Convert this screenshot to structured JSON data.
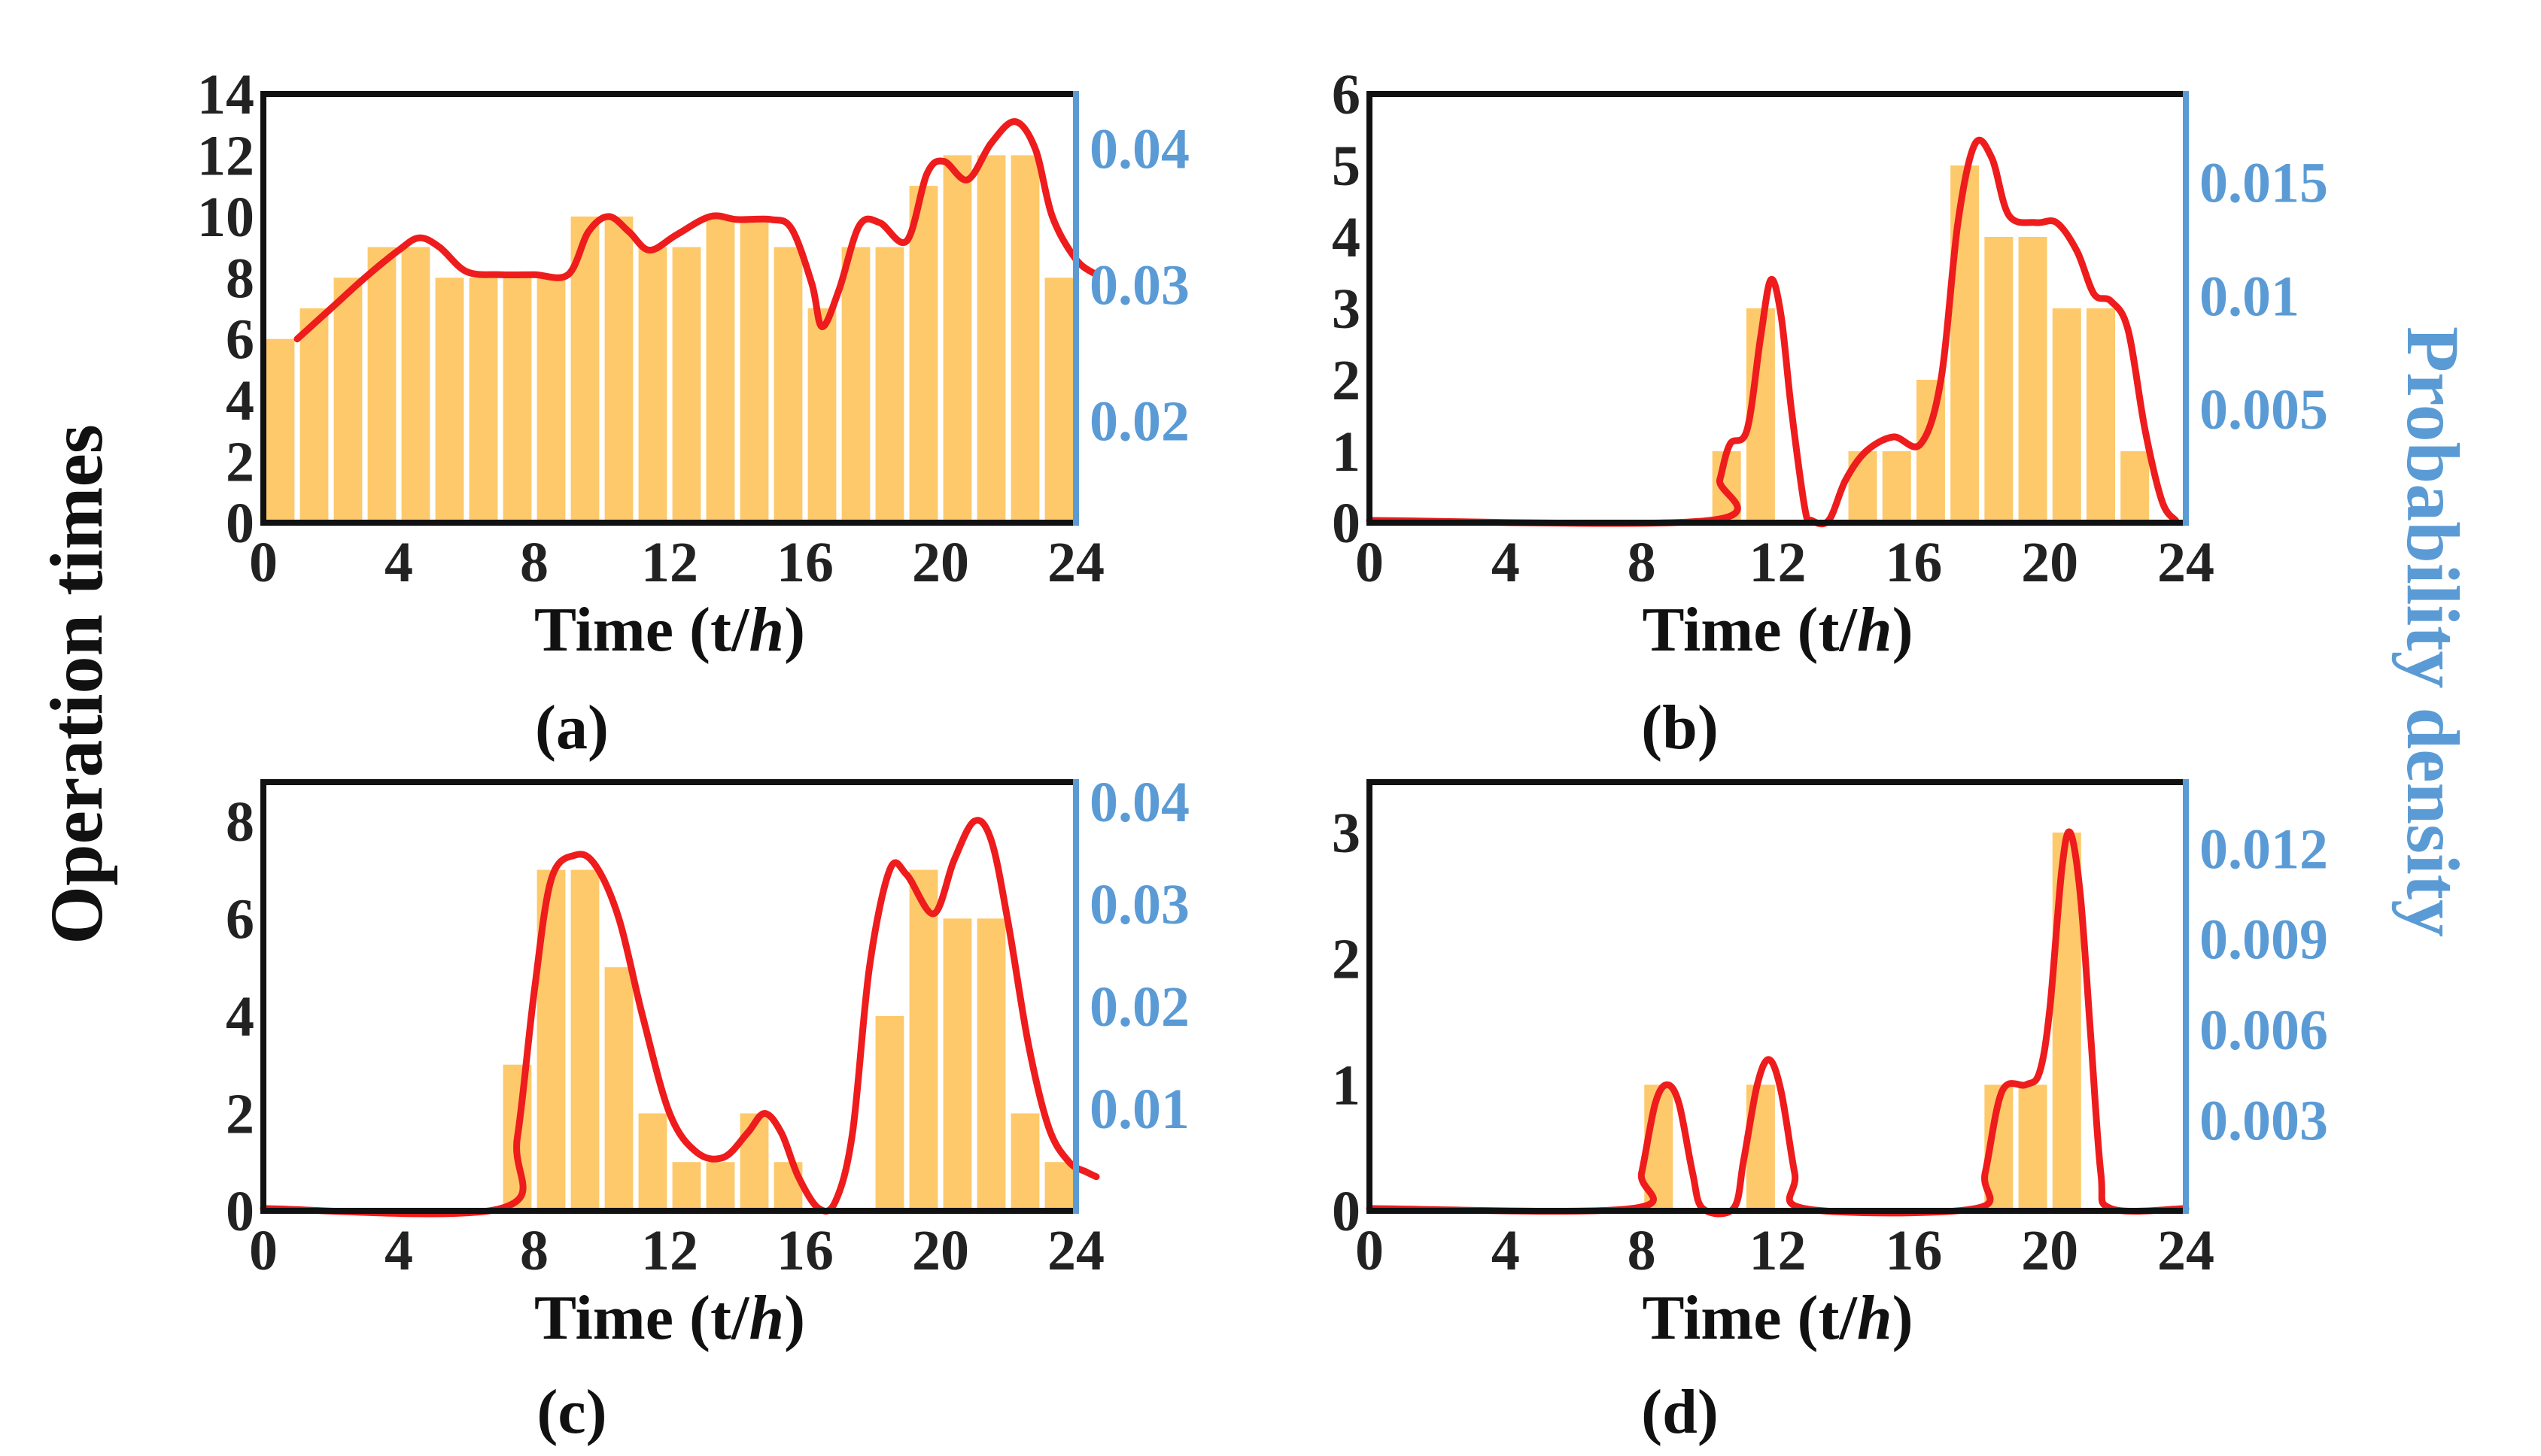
{
  "figure": {
    "ylabel_left": "Operation times",
    "ylabel_right": "Probability density",
    "colors": {
      "bar": "#fdc96a",
      "curve": "#ee1c1c",
      "right_axis": "#5b9bd5",
      "frame": "#111111"
    }
  },
  "chart_data": [
    {
      "type": "bar",
      "panel": "a",
      "caption": "(a)",
      "xlabel_main": "Time (t/",
      "xlabel_italic": "h",
      "xlabel_end": ")",
      "xlim": [
        0,
        24
      ],
      "xticks": [
        0,
        4,
        8,
        12,
        16,
        20,
        24
      ],
      "ylim_left": [
        0,
        14
      ],
      "yticks_left": [
        0,
        2,
        4,
        6,
        8,
        10,
        12,
        14
      ],
      "ylim_right": [
        0.0125,
        0.044
      ],
      "yticks_right": [
        "0.02",
        "0.03",
        "0.04"
      ],
      "yticks_right_values": [
        0.02,
        0.03,
        0.04
      ],
      "categories": [
        0.5,
        1.5,
        2.5,
        3.5,
        4.5,
        5.5,
        6.5,
        7.5,
        8.5,
        9.5,
        10.5,
        11.5,
        12.5,
        13.5,
        14.5,
        15.5,
        16.5,
        17.5,
        18.5,
        19.5,
        20.5,
        21.5,
        22.5,
        23.5
      ],
      "values": [
        6,
        7,
        8,
        9,
        9,
        8,
        8,
        8,
        8,
        10,
        10,
        9,
        9,
        10,
        10,
        9,
        7,
        9,
        9,
        11,
        12,
        12,
        12,
        8
      ],
      "curve": [
        [
          1,
          6.0
        ],
        [
          2,
          7.0
        ],
        [
          3,
          8.0
        ],
        [
          4,
          8.9
        ],
        [
          4.6,
          9.3
        ],
        [
          5.2,
          9.0
        ],
        [
          6,
          8.2
        ],
        [
          7,
          8.1
        ],
        [
          8,
          8.1
        ],
        [
          9,
          8.1
        ],
        [
          9.6,
          9.5
        ],
        [
          10.2,
          10.0
        ],
        [
          10.8,
          9.5
        ],
        [
          11.4,
          8.9
        ],
        [
          12.2,
          9.4
        ],
        [
          13.2,
          10.0
        ],
        [
          14,
          9.9
        ],
        [
          15,
          9.9
        ],
        [
          15.6,
          9.6
        ],
        [
          16.2,
          7.8
        ],
        [
          16.5,
          6.4
        ],
        [
          17,
          7.6
        ],
        [
          17.6,
          9.7
        ],
        [
          18.2,
          9.8
        ],
        [
          19,
          9.2
        ],
        [
          19.6,
          11.4
        ],
        [
          20.1,
          11.8
        ],
        [
          20.8,
          11.2
        ],
        [
          21.5,
          12.4
        ],
        [
          22.2,
          13.1
        ],
        [
          22.8,
          12.2
        ],
        [
          23.3,
          10.0
        ],
        [
          24,
          8.6
        ],
        [
          24.6,
          8.1
        ]
      ]
    },
    {
      "type": "bar",
      "panel": "b",
      "caption": "(b)",
      "xlabel_main": "Time (t/",
      "xlabel_italic": "h",
      "xlabel_end": ")",
      "xlim": [
        0,
        24
      ],
      "xticks": [
        0,
        4,
        8,
        12,
        16,
        20,
        24
      ],
      "ylim_left": [
        0,
        6
      ],
      "yticks_left": [
        0,
        1,
        2,
        3,
        4,
        5,
        6
      ],
      "ylim_right": [
        0,
        0.0189
      ],
      "yticks_right": [
        "0.005",
        "0.01",
        "0.015"
      ],
      "yticks_right_values": [
        0.005,
        0.01,
        0.015
      ],
      "categories": [
        10.5,
        11.5,
        14.5,
        15.5,
        16.5,
        17.5,
        18.5,
        19.5,
        20.5,
        21.5,
        22.5
      ],
      "values": [
        1,
        3,
        1,
        1,
        2,
        5,
        4,
        4,
        3,
        3,
        1
      ],
      "curve": [
        [
          0,
          0
        ],
        [
          10,
          0
        ],
        [
          10.3,
          0.6
        ],
        [
          10.6,
          1.1
        ],
        [
          11.1,
          1.3
        ],
        [
          11.5,
          2.6
        ],
        [
          11.8,
          3.4
        ],
        [
          12.1,
          2.9
        ],
        [
          12.4,
          1.6
        ],
        [
          12.8,
          0.2
        ],
        [
          13.0,
          0
        ],
        [
          13.5,
          0
        ],
        [
          14,
          0.6
        ],
        [
          14.6,
          1.0
        ],
        [
          15.4,
          1.2
        ],
        [
          16.2,
          1.1
        ],
        [
          16.8,
          2.0
        ],
        [
          17.3,
          4.2
        ],
        [
          17.8,
          5.3
        ],
        [
          18.3,
          5.1
        ],
        [
          18.8,
          4.3
        ],
        [
          19.6,
          4.2
        ],
        [
          20.2,
          4.2
        ],
        [
          20.8,
          3.8
        ],
        [
          21.3,
          3.2
        ],
        [
          21.8,
          3.1
        ],
        [
          22.3,
          2.7
        ],
        [
          22.8,
          1.3
        ],
        [
          23.3,
          0.3
        ],
        [
          23.7,
          0
        ]
      ]
    },
    {
      "type": "bar",
      "panel": "c",
      "caption": "(c)",
      "xlabel_main": "Time (t/",
      "xlabel_italic": "h",
      "xlabel_end": ")",
      "xlim": [
        0,
        24
      ],
      "xticks": [
        0,
        4,
        8,
        12,
        16,
        20,
        24
      ],
      "ylim_left": [
        0,
        8.8
      ],
      "yticks_left": [
        0,
        2,
        4,
        6,
        8
      ],
      "ylim_right": [
        0.0,
        0.0419
      ],
      "yticks_right": [
        "0.01",
        "0.02",
        "0.03",
        "0.04"
      ],
      "yticks_right_values": [
        0.01,
        0.02,
        0.03,
        0.04
      ],
      "categories": [
        7.5,
        8.5,
        9.5,
        10.5,
        11.5,
        12.5,
        13.5,
        14.5,
        15.5,
        18.5,
        19.5,
        20.5,
        21.5,
        22.5,
        23.5
      ],
      "values": [
        3,
        7,
        7,
        5,
        2,
        1,
        1,
        2,
        1,
        4,
        7,
        6,
        6,
        2,
        1
      ],
      "curve": [
        [
          0,
          0
        ],
        [
          7,
          0
        ],
        [
          7.5,
          1.5
        ],
        [
          8,
          4.5
        ],
        [
          8.5,
          6.8
        ],
        [
          9.2,
          7.3
        ],
        [
          9.8,
          7.1
        ],
        [
          10.5,
          6.0
        ],
        [
          11.2,
          4.0
        ],
        [
          12,
          2.0
        ],
        [
          12.8,
          1.2
        ],
        [
          13.6,
          1.1
        ],
        [
          14.3,
          1.6
        ],
        [
          14.8,
          2.0
        ],
        [
          15.3,
          1.6
        ],
        [
          15.8,
          0.7
        ],
        [
          16.4,
          0.05
        ],
        [
          16.9,
          0.2
        ],
        [
          17.4,
          1.6
        ],
        [
          17.9,
          5.0
        ],
        [
          18.5,
          7.0
        ],
        [
          19.0,
          6.9
        ],
        [
          19.8,
          6.1
        ],
        [
          20.4,
          7.2
        ],
        [
          21.0,
          8.0
        ],
        [
          21.5,
          7.6
        ],
        [
          22.0,
          5.9
        ],
        [
          22.6,
          3.4
        ],
        [
          23.2,
          1.7
        ],
        [
          23.8,
          1.0
        ],
        [
          24.3,
          0.8
        ],
        [
          24.6,
          0.7
        ]
      ]
    },
    {
      "type": "bar",
      "panel": "d",
      "caption": "(d)",
      "xlabel_main": "Time (t/",
      "xlabel_italic": "h",
      "xlabel_end": ")",
      "xlim": [
        0,
        24
      ],
      "xticks": [
        0,
        4,
        8,
        12,
        16,
        20,
        24
      ],
      "ylim_left": [
        0,
        3.4
      ],
      "yticks_left": [
        0,
        1,
        2,
        3
      ],
      "ylim_right": [
        0.0,
        0.0142
      ],
      "yticks_right": [
        "0.003",
        "0.006",
        "0.009",
        "0.012"
      ],
      "yticks_right_values": [
        0.003,
        0.006,
        0.009,
        0.012
      ],
      "categories": [
        8.5,
        11.5,
        18.5,
        19.5,
        20.5
      ],
      "values": [
        1,
        1,
        1,
        1,
        3
      ],
      "curve": [
        [
          0,
          0
        ],
        [
          7.7,
          0
        ],
        [
          8.0,
          0.3
        ],
        [
          8.4,
          0.85
        ],
        [
          8.75,
          1.0
        ],
        [
          9.1,
          0.85
        ],
        [
          9.5,
          0.3
        ],
        [
          9.8,
          0
        ],
        [
          10.7,
          0
        ],
        [
          11.0,
          0.4
        ],
        [
          11.4,
          1.0
        ],
        [
          11.75,
          1.2
        ],
        [
          12.1,
          0.95
        ],
        [
          12.5,
          0.3
        ],
        [
          12.8,
          0
        ],
        [
          17.8,
          0
        ],
        [
          18.1,
          0.3
        ],
        [
          18.6,
          0.95
        ],
        [
          19.3,
          1.0
        ],
        [
          19.7,
          1.1
        ],
        [
          20.0,
          1.6
        ],
        [
          20.35,
          2.7
        ],
        [
          20.6,
          3.0
        ],
        [
          20.9,
          2.5
        ],
        [
          21.2,
          1.4
        ],
        [
          21.5,
          0.3
        ],
        [
          21.8,
          0
        ],
        [
          24,
          0
        ]
      ]
    }
  ]
}
